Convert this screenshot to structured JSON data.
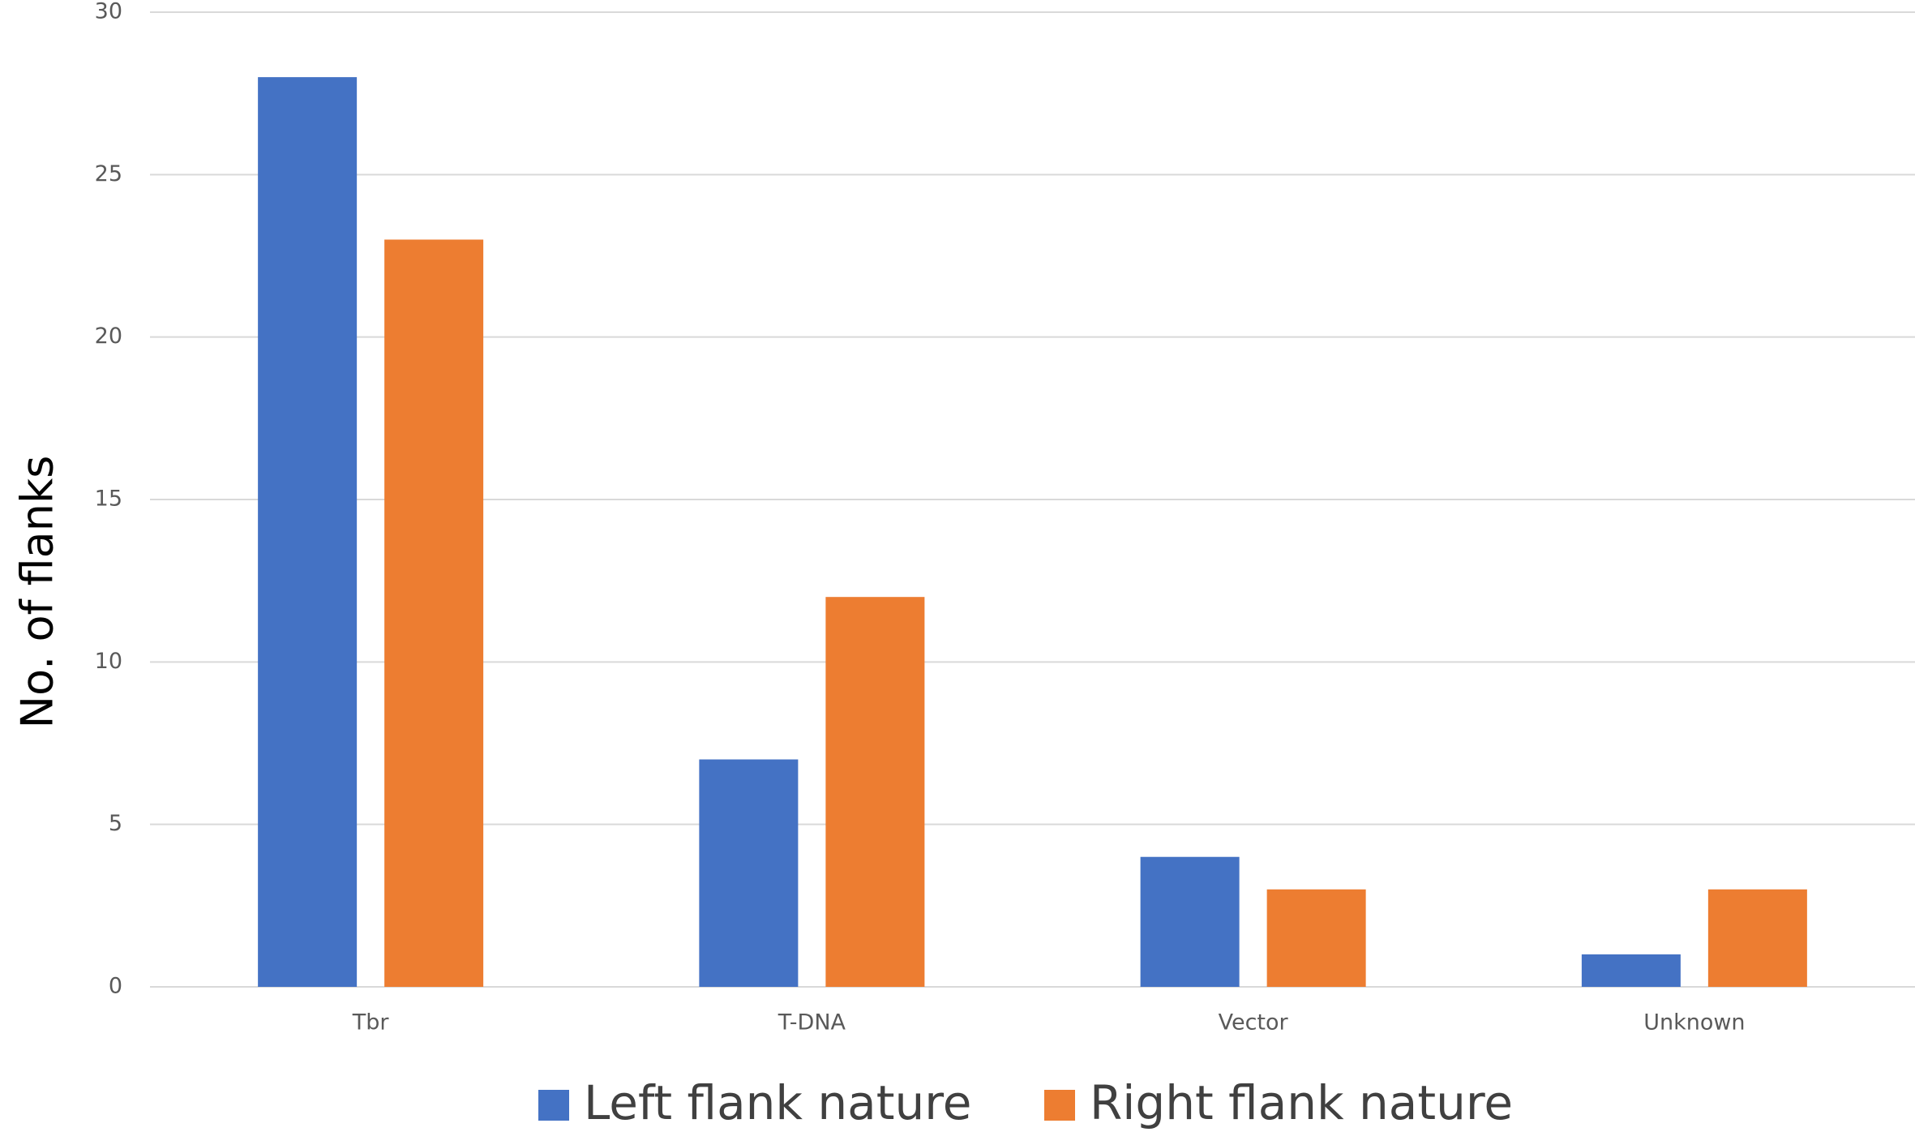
{
  "chart_data": {
    "type": "bar",
    "y_label": "No. of flanks",
    "categories": [
      "Tbr",
      "T-DNA",
      "Vector",
      "Unknown"
    ],
    "series": [
      {
        "name": "Left flank nature",
        "color": "#4472c4",
        "values": [
          28,
          7,
          4,
          1
        ]
      },
      {
        "name": "Right flank nature",
        "color": "#ed7d31",
        "values": [
          23,
          12,
          3,
          3
        ]
      }
    ],
    "ylim": [
      0,
      30
    ],
    "yticks": [
      0,
      5,
      10,
      15,
      20,
      25,
      30
    ],
    "grid": true,
    "legend": "bottom"
  }
}
